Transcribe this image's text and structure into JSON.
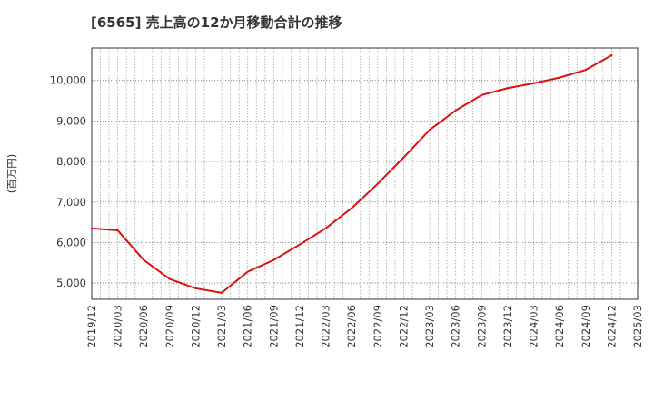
{
  "chart_data": {
    "type": "line",
    "title": "[6565]  売上高の12か月移動合計の推移",
    "ylabel": "(百万円)",
    "xlabel": "",
    "x_ticks": [
      "2019/12",
      "2020/03",
      "2020/06",
      "2020/09",
      "2020/12",
      "2021/03",
      "2021/06",
      "2021/09",
      "2021/12",
      "2022/03",
      "2022/06",
      "2022/09",
      "2022/12",
      "2023/03",
      "2023/06",
      "2023/09",
      "2023/12",
      "2024/03",
      "2024/06",
      "2024/09",
      "2024/12",
      "2025/03"
    ],
    "y_ticks": [
      5000,
      6000,
      7000,
      8000,
      9000,
      10000
    ],
    "y_tick_labels": [
      "5,000",
      "6,000",
      "7,000",
      "8,000",
      "9,000",
      "10,000"
    ],
    "ylim": [
      4600,
      10800
    ],
    "grid": true,
    "series": [
      {
        "name": "売上高",
        "color": "#dd1111",
        "x": [
          "2019/12",
          "2020/03",
          "2020/06",
          "2020/09",
          "2020/12",
          "2021/03",
          "2021/06",
          "2021/09",
          "2021/12",
          "2022/03",
          "2022/06",
          "2022/09",
          "2022/12",
          "2023/03",
          "2023/06",
          "2023/09",
          "2023/12",
          "2024/03",
          "2024/06",
          "2024/09",
          "2024/12"
        ],
        "values": [
          6350,
          6300,
          5570,
          5100,
          4870,
          4760,
          5280,
          5570,
          5950,
          6350,
          6850,
          7450,
          8100,
          8780,
          9260,
          9640,
          9810,
          9930,
          10070,
          10260,
          10620
        ]
      }
    ]
  }
}
